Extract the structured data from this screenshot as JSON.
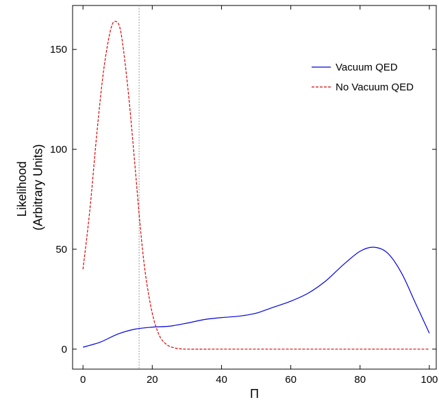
{
  "chart_data": {
    "type": "line",
    "title": "",
    "xlabel": "Π",
    "ylabel_lines": [
      "Likelihood",
      "(Arbitrary Units)"
    ],
    "xlim": [
      -3,
      102
    ],
    "ylim": [
      -10,
      172
    ],
    "x_ticks": [
      0,
      20,
      40,
      60,
      80,
      100
    ],
    "y_ticks": [
      0,
      50,
      100,
      150
    ],
    "grid": false,
    "legend_position": "top-right",
    "vline": {
      "x": 16.2,
      "color": "#999999",
      "style": "dotted"
    },
    "series": [
      {
        "name": "Vacuum QED",
        "color": "#0000dd",
        "style": "solid",
        "points": [
          [
            0,
            1
          ],
          [
            5,
            3.5
          ],
          [
            10,
            7.5
          ],
          [
            15,
            10
          ],
          [
            20,
            11
          ],
          [
            25,
            11.5
          ],
          [
            30,
            13
          ],
          [
            35,
            14.8
          ],
          [
            40,
            15.8
          ],
          [
            45,
            16.5
          ],
          [
            50,
            18
          ],
          [
            55,
            21
          ],
          [
            60,
            24
          ],
          [
            65,
            28
          ],
          [
            70,
            34
          ],
          [
            75,
            42
          ],
          [
            80,
            49
          ],
          [
            84,
            51
          ],
          [
            88,
            48
          ],
          [
            92,
            38
          ],
          [
            96,
            23
          ],
          [
            100,
            8
          ]
        ]
      },
      {
        "name": "No Vacuum QED",
        "color": "#dd0000",
        "style": "dashed",
        "points": [
          [
            0,
            40
          ],
          [
            2,
            70
          ],
          [
            4,
            108
          ],
          [
            6,
            140
          ],
          [
            8,
            160
          ],
          [
            9.5,
            164
          ],
          [
            11,
            158
          ],
          [
            13,
            130
          ],
          [
            15,
            92
          ],
          [
            16.5,
            62
          ],
          [
            18,
            38
          ],
          [
            20,
            18
          ],
          [
            22,
            7
          ],
          [
            24,
            2.5
          ],
          [
            26,
            0.8
          ],
          [
            28,
            0.2
          ],
          [
            30,
            0
          ],
          [
            40,
            0
          ],
          [
            60,
            0
          ],
          [
            80,
            0
          ],
          [
            100,
            0
          ]
        ]
      }
    ]
  }
}
